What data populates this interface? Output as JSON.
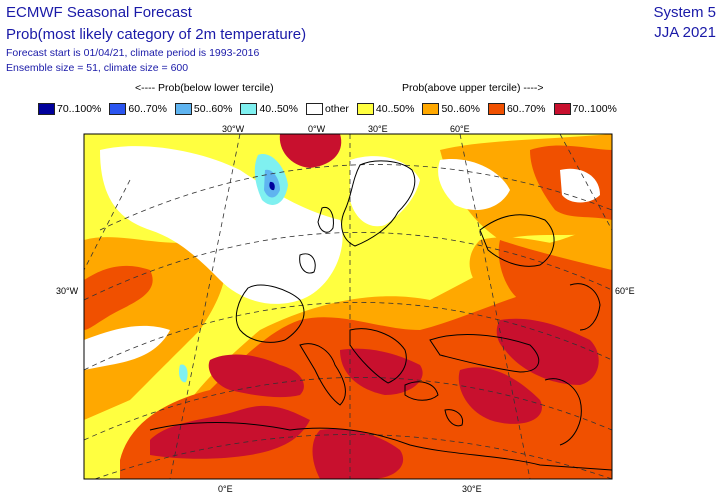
{
  "header": {
    "title": "ECMWF Seasonal Forecast",
    "subtitle": "Prob(most likely category of 2m temperature)",
    "forecast_info": "Forecast start is 01/04/21, climate period is 1993-2016",
    "ensemble_info": "Ensemble size = 51, climate size = 600",
    "system": "System 5",
    "season": "JJA 2021"
  },
  "legend": {
    "below_heading": "<---- Prob(below lower tercile)",
    "above_heading": "Prob(above upper tercile) ---->",
    "items": [
      {
        "label": "70..100%",
        "color": "#00009c"
      },
      {
        "label": "60..70%",
        "color": "#2b55f0"
      },
      {
        "label": "50..60%",
        "color": "#5fb4f0"
      },
      {
        "label": "40..50%",
        "color": "#7ff0f0"
      },
      {
        "label": "other",
        "color": "#ffffff"
      },
      {
        "label": "40..50%",
        "color": "#ffff40"
      },
      {
        "label": "50..60%",
        "color": "#ffa800"
      },
      {
        "label": "60..70%",
        "color": "#f05000"
      },
      {
        "label": "70..100%",
        "color": "#c8102e"
      }
    ]
  },
  "map": {
    "labels": {
      "lon_30w_top": "30°W",
      "lon_0_top": "0°W",
      "lon_30e_top": "30°E",
      "lon_60e_top": "60°E",
      "lat_30w_left": "30°W",
      "lat_60e_right": "60°E",
      "lon_0_bottom": "0°E",
      "lon_30e_bottom": "30°E"
    },
    "colors": {
      "c70": "#c8102e",
      "c60": "#f05000",
      "c50": "#ffa800",
      "c40": "#ffff40",
      "other": "#ffffff",
      "b40": "#7ff0f0",
      "b50": "#5fb4f0",
      "b70": "#00009c"
    }
  }
}
